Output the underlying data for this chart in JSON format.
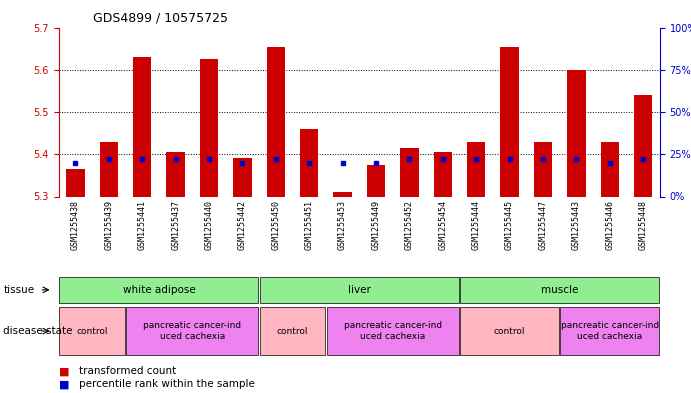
{
  "title": "GDS4899 / 10575725",
  "samples": [
    "GSM1255438",
    "GSM1255439",
    "GSM1255441",
    "GSM1255437",
    "GSM1255440",
    "GSM1255442",
    "GSM1255450",
    "GSM1255451",
    "GSM1255453",
    "GSM1255449",
    "GSM1255452",
    "GSM1255454",
    "GSM1255444",
    "GSM1255445",
    "GSM1255447",
    "GSM1255443",
    "GSM1255446",
    "GSM1255448"
  ],
  "red_values": [
    5.365,
    5.43,
    5.63,
    5.405,
    5.625,
    5.39,
    5.655,
    5.46,
    5.31,
    5.375,
    5.415,
    5.405,
    5.43,
    5.655,
    5.43,
    5.6,
    5.43,
    5.54
  ],
  "blue_values": [
    20,
    22,
    22,
    22,
    22,
    20,
    22,
    20,
    20,
    20,
    22,
    22,
    22,
    22,
    22,
    22,
    20,
    22
  ],
  "ylim_left": [
    5.3,
    5.7
  ],
  "ylim_right": [
    0,
    100
  ],
  "yticks_left": [
    5.3,
    5.4,
    5.5,
    5.6,
    5.7
  ],
  "yticks_right": [
    0,
    25,
    50,
    75,
    100
  ],
  "tissue_groups": [
    {
      "label": "white adipose",
      "start": 0,
      "end": 6,
      "color": "#90EE90"
    },
    {
      "label": "liver",
      "start": 6,
      "end": 12,
      "color": "#90EE90"
    },
    {
      "label": "muscle",
      "start": 12,
      "end": 18,
      "color": "#90EE90"
    }
  ],
  "disease_groups": [
    {
      "label": "control",
      "start": 0,
      "end": 2,
      "color": "#FFB6C1"
    },
    {
      "label": "pancreatic cancer-ind\nuced cachexia",
      "start": 2,
      "end": 6,
      "color": "#EE82EE"
    },
    {
      "label": "control",
      "start": 6,
      "end": 8,
      "color": "#FFB6C1"
    },
    {
      "label": "pancreatic cancer-ind\nuced cachexia",
      "start": 8,
      "end": 12,
      "color": "#EE82EE"
    },
    {
      "label": "control",
      "start": 12,
      "end": 15,
      "color": "#FFB6C1"
    },
    {
      "label": "pancreatic cancer-ind\nuced cachexia",
      "start": 15,
      "end": 18,
      "color": "#EE82EE"
    }
  ],
  "bar_color": "#CC0000",
  "dot_color": "#0000CC",
  "axis_color_left": "#CC0000",
  "axis_color_right": "#0000CC",
  "plot_bg": "#FFFFFF",
  "xtick_bg": "#D3D3D3",
  "grid_color": "#000000",
  "ytick_left_fontsize": 7,
  "ytick_right_fontsize": 7,
  "xtick_fontsize": 6,
  "title_fontsize": 9,
  "bar_width": 0.55
}
